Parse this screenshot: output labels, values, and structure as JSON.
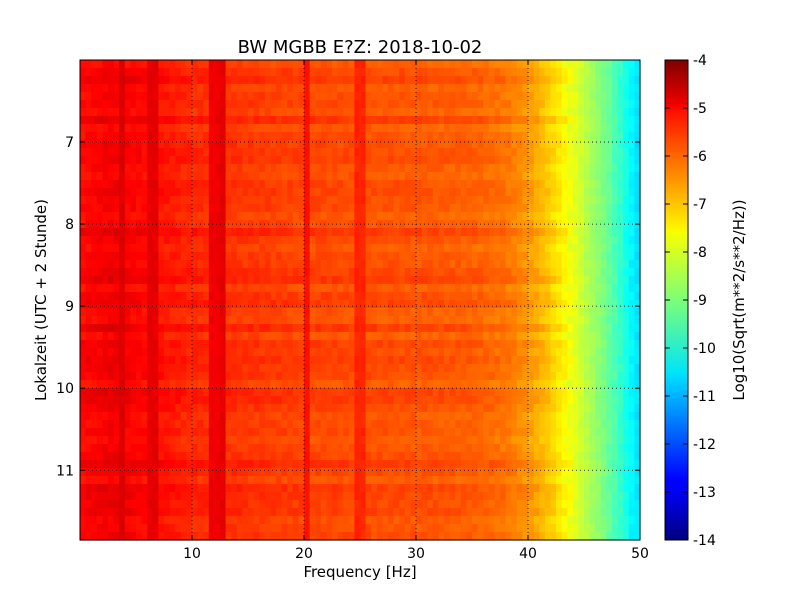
{
  "chart_data": {
    "type": "heatmap",
    "title": "BW MGBB E?Z: 2018-10-02",
    "xlabel": "Frequency [Hz]",
    "ylabel": "Lokalzeit (UTC + 2 Stunde)",
    "xlim": [
      0,
      50
    ],
    "ylim": [
      6.0,
      11.85
    ],
    "y_inverted": true,
    "x_ticks": [
      "10",
      "20",
      "30",
      "40",
      "50"
    ],
    "y_ticks": [
      "7",
      "8",
      "9",
      "10",
      "11"
    ],
    "grid": true,
    "colorbar": {
      "label": "Log10(Sqrt(m**2/s**2/Hz))",
      "min": -14,
      "max": -4,
      "ticks": [
        "-4",
        "-5",
        "-6",
        "-7",
        "-8",
        "-9",
        "-10",
        "-11",
        "-12",
        "-13",
        "-14"
      ],
      "colormap": "jet"
    },
    "baseline_profile": {
      "frequency_hz": [
        0,
        3,
        10,
        20,
        30,
        35,
        38,
        40,
        41,
        42,
        43,
        44,
        45,
        46,
        47,
        48,
        49,
        50
      ],
      "log10_amplitude": [
        -5.3,
        -5.1,
        -5.6,
        -5.9,
        -6.05,
        -6.15,
        -6.35,
        -6.7,
        -6.95,
        -7.25,
        -7.6,
        -7.95,
        -8.35,
        -8.75,
        -9.15,
        -9.6,
        -10.2,
        -10.6
      ]
    },
    "line_features": [
      {
        "frequency_hz": 3.6,
        "log10_amplitude": -4.9
      },
      {
        "frequency_hz": 6.5,
        "log10_amplitude": -5.0
      },
      {
        "frequency_hz": 12.0,
        "log10_amplitude": -5.1
      },
      {
        "frequency_hz": 12.9,
        "log10_amplitude": -5.0
      },
      {
        "frequency_hz": 20.3,
        "log10_amplitude": -5.4
      },
      {
        "frequency_hz": 25.0,
        "log10_amplitude": -5.6
      }
    ]
  }
}
